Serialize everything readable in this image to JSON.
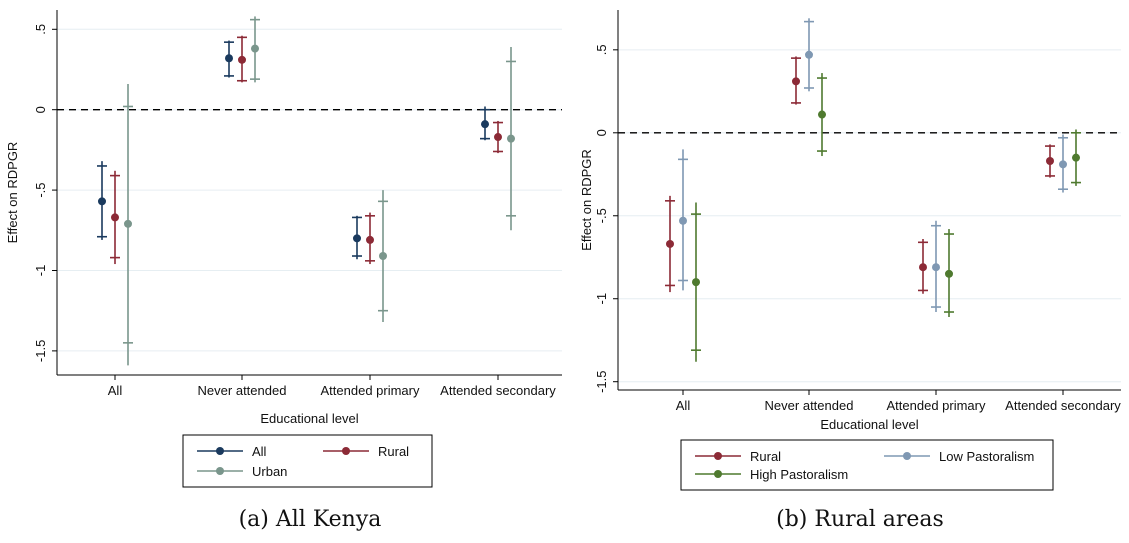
{
  "chart_data": [
    {
      "type": "scatter",
      "subtype": "point-with-error-bars",
      "caption": "(a) All Kenya",
      "title": "",
      "xlabel": "Educational level",
      "ylabel": "Effect on RDPGR",
      "categories": [
        "All",
        "Never attended",
        "Attended primary",
        "Attended secondary"
      ],
      "ylim": [
        -1.65,
        0.62
      ],
      "yticks": [
        0.5,
        0,
        -0.5,
        -1,
        -1.5
      ],
      "ytick_labels": [
        ".5",
        "0",
        "-.5",
        "-1",
        "-1.5"
      ],
      "reference_line": 0,
      "grid": true,
      "legend_position": "bottom",
      "series": [
        {
          "name": "All",
          "color": "#1a3a5e",
          "points": [
            {
              "x": "All",
              "y": -0.57,
              "ci90": [
                -0.79,
                -0.35
              ],
              "ci95": [
                -0.81,
                -0.32
              ]
            },
            {
              "x": "Never attended",
              "y": 0.32,
              "ci90": [
                0.21,
                0.42
              ],
              "ci95": [
                0.2,
                0.43
              ]
            },
            {
              "x": "Attended primary",
              "y": -0.8,
              "ci90": [
                -0.91,
                -0.67
              ],
              "ci95": [
                -0.93,
                -0.66
              ]
            },
            {
              "x": "Attended secondary",
              "y": -0.09,
              "ci90": [
                -0.18,
                0.0
              ],
              "ci95": [
                -0.19,
                0.02
              ]
            }
          ]
        },
        {
          "name": "Rural",
          "color": "#8c2a36",
          "points": [
            {
              "x": "All",
              "y": -0.67,
              "ci90": [
                -0.92,
                -0.41
              ],
              "ci95": [
                -0.96,
                -0.38
              ]
            },
            {
              "x": "Never attended",
              "y": 0.31,
              "ci90": [
                0.18,
                0.45
              ],
              "ci95": [
                0.17,
                0.46
              ]
            },
            {
              "x": "Attended primary",
              "y": -0.81,
              "ci90": [
                -0.94,
                -0.66
              ],
              "ci95": [
                -0.96,
                -0.64
              ]
            },
            {
              "x": "Attended secondary",
              "y": -0.17,
              "ci90": [
                -0.26,
                -0.08
              ],
              "ci95": [
                -0.27,
                -0.07
              ]
            }
          ]
        },
        {
          "name": "Urban",
          "color": "#7a968c",
          "points": [
            {
              "x": "All",
              "y": -0.71,
              "ci90": [
                -1.45,
                0.02
              ],
              "ci95": [
                -1.59,
                0.16
              ]
            },
            {
              "x": "Never attended",
              "y": 0.38,
              "ci90": [
                0.19,
                0.56
              ],
              "ci95": [
                0.17,
                0.58
              ]
            },
            {
              "x": "Attended primary",
              "y": -0.91,
              "ci90": [
                -1.25,
                -0.57
              ],
              "ci95": [
                -1.32,
                -0.5
              ]
            },
            {
              "x": "Attended secondary",
              "y": -0.18,
              "ci90": [
                -0.66,
                0.3
              ],
              "ci95": [
                -0.75,
                0.39
              ]
            }
          ]
        }
      ]
    },
    {
      "type": "scatter",
      "subtype": "point-with-error-bars",
      "caption": "(b) Rural areas",
      "title": "",
      "xlabel": "Educational level",
      "ylabel": "Effect on RDPGR",
      "categories": [
        "All",
        "Never attended",
        "Attended primary",
        "Attended secondary"
      ],
      "ylim": [
        -1.55,
        0.74
      ],
      "yticks": [
        0.5,
        0,
        -0.5,
        -1,
        -1.5
      ],
      "ytick_labels": [
        ".5",
        "0",
        "-.5",
        "-1",
        "-1.5"
      ],
      "reference_line": 0,
      "grid": true,
      "legend_position": "bottom",
      "series": [
        {
          "name": "Rural",
          "color": "#8c2a36",
          "points": [
            {
              "x": "All",
              "y": -0.67,
              "ci90": [
                -0.92,
                -0.41
              ],
              "ci95": [
                -0.96,
                -0.38
              ]
            },
            {
              "x": "Never attended",
              "y": 0.31,
              "ci90": [
                0.18,
                0.45
              ],
              "ci95": [
                0.17,
                0.46
              ]
            },
            {
              "x": "Attended primary",
              "y": -0.81,
              "ci90": [
                -0.95,
                -0.66
              ],
              "ci95": [
                -0.97,
                -0.64
              ]
            },
            {
              "x": "Attended secondary",
              "y": -0.17,
              "ci90": [
                -0.26,
                -0.08
              ],
              "ci95": [
                -0.27,
                -0.07
              ]
            }
          ]
        },
        {
          "name": "Low Pastoralism",
          "color": "#7f98b3",
          "points": [
            {
              "x": "All",
              "y": -0.53,
              "ci90": [
                -0.89,
                -0.16
              ],
              "ci95": [
                -0.95,
                -0.1
              ]
            },
            {
              "x": "Never attended",
              "y": 0.47,
              "ci90": [
                0.27,
                0.67
              ],
              "ci95": [
                0.25,
                0.69
              ]
            },
            {
              "x": "Attended primary",
              "y": -0.81,
              "ci90": [
                -1.05,
                -0.56
              ],
              "ci95": [
                -1.08,
                -0.53
              ]
            },
            {
              "x": "Attended secondary",
              "y": -0.19,
              "ci90": [
                -0.34,
                -0.03
              ],
              "ci95": [
                -0.36,
                -0.01
              ]
            }
          ]
        },
        {
          "name": "High Pastoralism",
          "color": "#4f7a2f",
          "points": [
            {
              "x": "All",
              "y": -0.9,
              "ci90": [
                -1.31,
                -0.49
              ],
              "ci95": [
                -1.38,
                -0.42
              ]
            },
            {
              "x": "Never attended",
              "y": 0.11,
              "ci90": [
                -0.11,
                0.33
              ],
              "ci95": [
                -0.14,
                0.36
              ]
            },
            {
              "x": "Attended primary",
              "y": -0.85,
              "ci90": [
                -1.08,
                -0.61
              ],
              "ci95": [
                -1.11,
                -0.58
              ]
            },
            {
              "x": "Attended secondary",
              "y": -0.15,
              "ci90": [
                -0.3,
                0.0
              ],
              "ci95": [
                -0.32,
                0.02
              ]
            }
          ]
        }
      ]
    }
  ]
}
